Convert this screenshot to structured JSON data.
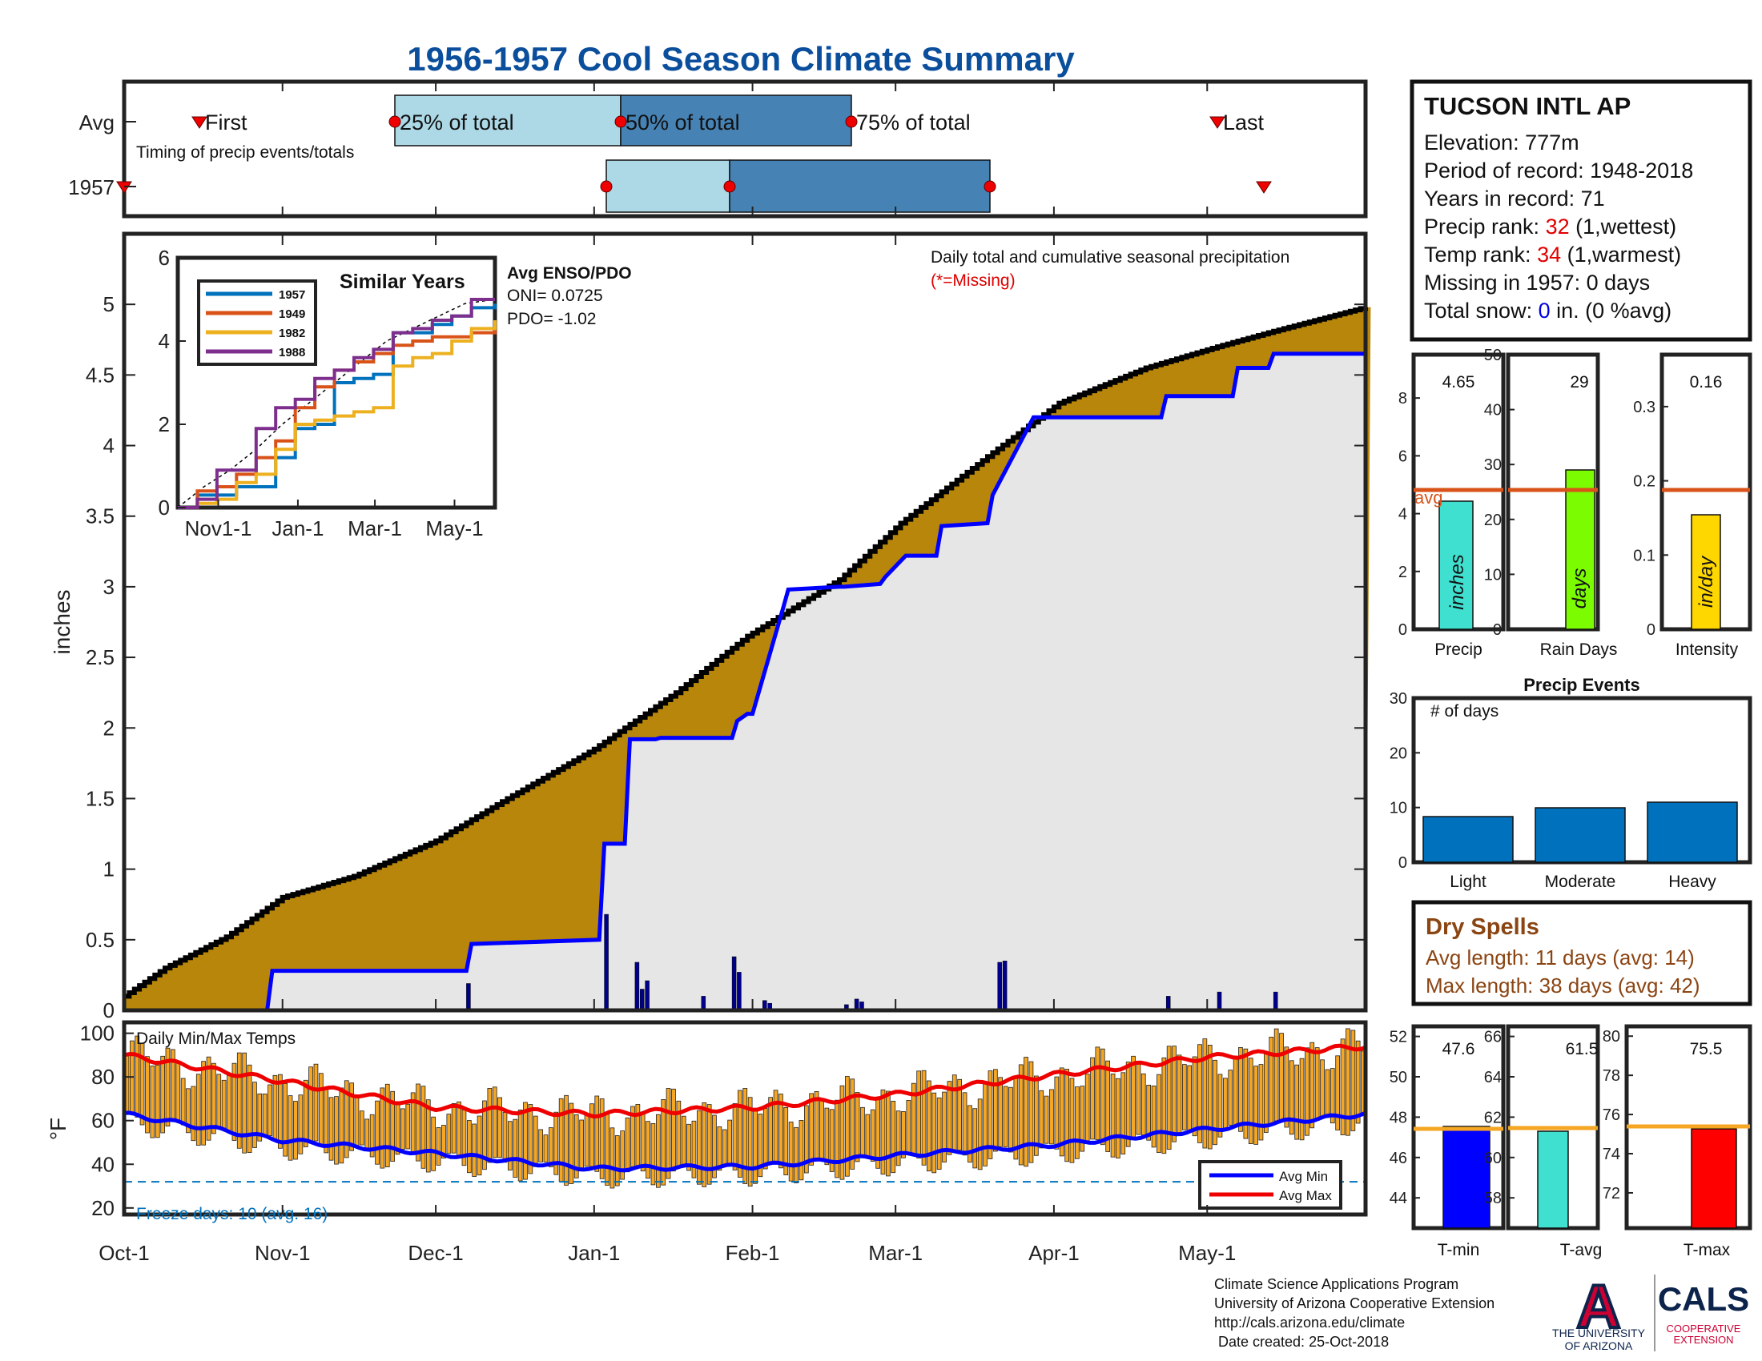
{
  "title": "1956-1957 Cool Season Climate Summary",
  "timing": {
    "row_labels": [
      "Avg",
      "1957"
    ],
    "first": "First",
    "last": "Last",
    "p25": "25% of total",
    "p50": "50% of total",
    "p75": "75% of total",
    "note": "Timing of precip events/totals"
  },
  "station": {
    "name": "TUCSON INTL AP",
    "elevation": "Elevation: 777m",
    "period": "Period of record: 1948-2018",
    "years": "Years in record: 71",
    "precip_rank_pre": "Precip rank: ",
    "precip_rank_val": "32",
    "precip_rank_post": " (1,wettest)",
    "temp_rank_pre": "Temp rank: ",
    "temp_rank_val": "34",
    "temp_rank_post": " (1,warmest)",
    "missing": "Missing in 1957: 0 days",
    "snow_pre": "Total snow: ",
    "snow_val": "0",
    "snow_post": " in. (0 %avg)"
  },
  "main": {
    "ylabel": "inches",
    "y_ticks": [
      "0",
      "0.5",
      "1",
      "1.5",
      "2",
      "2.5",
      "3",
      "3.5",
      "4",
      "4.5",
      "5"
    ],
    "x_ticks": [
      "Oct-1",
      "Nov-1",
      "Dec-1",
      "Jan-1",
      "Feb-1",
      "Mar-1",
      "Apr-1",
      "May-1"
    ],
    "legend_title": "Daily total and cumulative seasonal precipitation",
    "legend_missing": "(*=Missing)"
  },
  "inset": {
    "title": "Similar Years",
    "years": [
      "1957",
      "1949",
      "1982",
      "1988"
    ],
    "colors": [
      "#0072bd",
      "#d95319",
      "#edb120",
      "#7e2f8e"
    ],
    "y_ticks": [
      "0",
      "2",
      "4",
      "6"
    ],
    "x_ticks": [
      "Nov1-1",
      "Jan-1",
      "Mar-1",
      "May-1"
    ],
    "enso_title": "Avg ENSO/PDO",
    "oni": "ONI= 0.0725",
    "pdo": "PDO= -1.02"
  },
  "temps": {
    "title": "Daily Min/Max Temps",
    "ylabel": "°F",
    "y_ticks": [
      "20",
      "40",
      "60",
      "80",
      "100"
    ],
    "freeze": "Freeze days: 10 (avg. 16)",
    "legend_min": "Avg Min",
    "legend_max": "Avg Max"
  },
  "small_bars": {
    "precip": {
      "value_label": "4.65",
      "unit": "inches",
      "label": "Precip",
      "ticks": [
        "0",
        "2",
        "4",
        "6",
        "8"
      ],
      "avg_text": "avg"
    },
    "rain_days": {
      "value_label": "29",
      "unit": "days",
      "label": "Rain Days",
      "ticks": [
        "0",
        "10",
        "20",
        "30",
        "40",
        "50"
      ]
    },
    "intensity": {
      "value_label": "0.16",
      "unit": "in/day",
      "label": "Intensity",
      "ticks": [
        "0",
        "0.1",
        "0.2",
        "0.3"
      ]
    }
  },
  "events": {
    "title": "Precip Events",
    "note": "# of days",
    "ticks": [
      "0",
      "10",
      "20",
      "30"
    ],
    "labels": [
      "Light",
      "Moderate",
      "Heavy"
    ]
  },
  "dry_spells": {
    "title": "Dry Spells",
    "avg_len": "Avg length: 11 days (avg: 14)",
    "max_len": "Max length: 38 days (avg: 42)"
  },
  "temp_bars": {
    "tmin": {
      "value_label": "47.6",
      "label": "T-min",
      "ticks": [
        "44",
        "46",
        "48",
        "50",
        "52"
      ]
    },
    "tavg": {
      "value_label": "61.5",
      "label": "T-avg",
      "ticks": [
        "58",
        "60",
        "62",
        "64",
        "66"
      ]
    },
    "tmax": {
      "value_label": "75.5",
      "label": "T-max",
      "ticks": [
        "72",
        "74",
        "76",
        "78",
        "80"
      ]
    }
  },
  "footer": {
    "line1": "Climate Science Applications Program",
    "line2": "University of Arizona Cooperative Extension",
    "line3": "http://cals.arizona.edu/climate",
    "line4": " Date created: 25-Oct-2018",
    "ua_logo": "A",
    "ua_text1": "THE UNIVERSITY",
    "ua_text2": "OF ARIZONA",
    "cals_logo": "CALS",
    "cals_text1": "COOPERATIVE",
    "cals_text2": "EXTENSION"
  },
  "colors": {
    "title": "#0b4f9c",
    "cumulative_fill": "#b8860b",
    "avg_fill": "#e6e6e6",
    "avg_line": "#0000ff",
    "rank_red": "#e00000",
    "light_blue": "#add8e6",
    "steel_blue": "#4682b4",
    "dry_brown": "#8b4513",
    "temp_bar": "#f5a623",
    "event_bar": "#0072bd"
  },
  "chart_data": [
    {
      "type": "area",
      "title": "Daily total and cumulative seasonal precipitation",
      "ylabel": "inches",
      "x_unit": "day of season (Oct-1 = 0)",
      "ylim": [
        0,
        5.5
      ],
      "series": [
        {
          "name": "cumulative 1957",
          "x": [
            0,
            8,
            20,
            31,
            45,
            61,
            75,
            92,
            108,
            122,
            140,
            152,
            170,
            183,
            200,
            214,
            224,
            243
          ],
          "y": [
            0.1,
            0.3,
            0.52,
            0.8,
            0.95,
            1.2,
            1.5,
            1.85,
            2.25,
            2.65,
            3.05,
            3.45,
            3.95,
            4.3,
            4.55,
            4.7,
            4.8,
            4.98
          ]
        },
        {
          "name": "avg",
          "x": [
            0,
            28,
            29,
            67,
            68,
            93,
            94,
            98,
            99,
            104,
            105,
            119,
            120,
            122,
            123,
            129,
            130,
            140,
            141,
            148,
            149,
            153,
            154,
            159,
            160,
            169,
            170,
            178,
            179,
            203,
            204,
            217,
            218,
            224,
            225,
            243
          ],
          "y": [
            0,
            0,
            0.28,
            0.28,
            0.47,
            0.5,
            1.18,
            1.18,
            1.92,
            1.92,
            1.93,
            1.93,
            2.05,
            2.1,
            2.1,
            2.85,
            2.98,
            3.0,
            3.0,
            3.02,
            3.07,
            3.22,
            3.22,
            3.22,
            3.43,
            3.45,
            3.65,
            4.2,
            4.2,
            4.2,
            4.35,
            4.35,
            4.55,
            4.55,
            4.65,
            4.65
          ]
        },
        {
          "name": "daily 1957",
          "x": [
            67,
            94,
            100,
            101,
            102,
            113,
            119,
            120,
            125,
            126,
            141,
            143,
            144,
            171,
            172,
            204,
            214,
            225
          ],
          "y": [
            0.19,
            0.68,
            0.34,
            0.15,
            0.21,
            0.1,
            0.38,
            0.27,
            0.07,
            0.05,
            0.04,
            0.08,
            0.06,
            0.34,
            0.35,
            0.1,
            0.13,
            0.13
          ]
        }
      ]
    },
    {
      "type": "line",
      "title": "Similar Years",
      "ylim": [
        0,
        6
      ],
      "series": [
        {
          "name": "1957",
          "x": [
            0,
            15,
            30,
            45,
            60,
            75,
            90,
            105,
            120,
            135,
            150,
            165,
            180,
            195,
            210,
            225,
            243
          ],
          "y": [
            0,
            0.3,
            0.3,
            0.5,
            0.5,
            1.2,
            1.9,
            2.0,
            3.0,
            3.1,
            3.2,
            4.2,
            4.2,
            4.4,
            4.6,
            4.8,
            4.9
          ]
        },
        {
          "name": "1949",
          "x": [
            0,
            15,
            30,
            45,
            60,
            75,
            90,
            105,
            120,
            135,
            150,
            165,
            180,
            195,
            210,
            225,
            243
          ],
          "y": [
            0,
            0.4,
            0.5,
            0.8,
            1.2,
            1.6,
            2.4,
            2.9,
            3.3,
            3.5,
            3.7,
            3.9,
            4.0,
            4.1,
            4.1,
            4.2,
            4.3
          ]
        },
        {
          "name": "1982",
          "x": [
            0,
            15,
            30,
            45,
            60,
            75,
            90,
            105,
            120,
            135,
            150,
            165,
            180,
            195,
            210,
            225,
            243
          ],
          "y": [
            0,
            0.1,
            0.2,
            0.6,
            0.8,
            1.4,
            2.0,
            2.1,
            2.2,
            2.3,
            2.4,
            3.4,
            3.6,
            3.7,
            4.0,
            4.3,
            4.5
          ]
        },
        {
          "name": "1988",
          "x": [
            0,
            15,
            30,
            45,
            60,
            75,
            90,
            105,
            120,
            135,
            150,
            165,
            180,
            195,
            210,
            225,
            243
          ],
          "y": [
            0,
            0.2,
            0.9,
            0.9,
            1.9,
            2.4,
            2.6,
            3.1,
            3.3,
            3.6,
            3.8,
            4.2,
            4.3,
            4.5,
            4.6,
            5.0,
            5.0
          ]
        }
      ]
    },
    {
      "type": "bar",
      "title": "Daily Min/Max Temps",
      "ylabel": "°F",
      "ylim": [
        20,
        105
      ],
      "series": [
        {
          "name": "Avg Min",
          "x": [
            0,
            31,
            61,
            92,
            123,
            151,
            182,
            212,
            243
          ],
          "y": [
            63,
            51,
            45,
            38,
            39,
            44,
            49,
            56,
            63
          ]
        },
        {
          "name": "Avg Max",
          "x": [
            0,
            31,
            61,
            92,
            123,
            151,
            182,
            212,
            243
          ],
          "y": [
            90,
            78,
            66,
            63,
            66,
            72,
            81,
            89,
            94
          ]
        }
      ],
      "freeze_line": 32
    },
    {
      "type": "bar",
      "categories": [
        "Precip",
        "Rain Days",
        "Intensity"
      ],
      "values": [
        4.65,
        29,
        0.16
      ],
      "averages": [
        5.0,
        25,
        0.2
      ]
    },
    {
      "type": "bar",
      "title": "Precip Events",
      "categories": [
        "Light",
        "Moderate",
        "Heavy"
      ],
      "values": [
        8,
        10,
        11
      ],
      "ylim": [
        0,
        30
      ]
    },
    {
      "type": "bar",
      "categories": [
        "T-min",
        "T-avg",
        "T-max"
      ],
      "values": [
        47.6,
        61.5,
        75.5
      ],
      "averages": [
        47.4,
        61.6,
        75.7
      ]
    }
  ]
}
